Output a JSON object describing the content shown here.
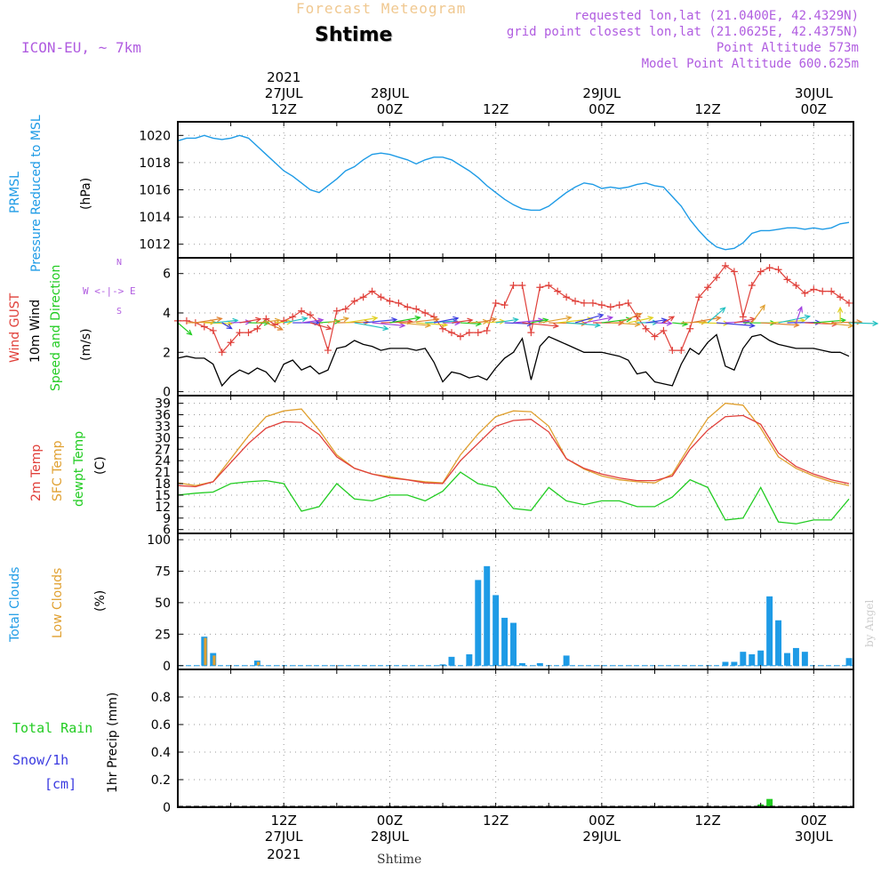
{
  "header": {
    "title_top": "Forecast Meteogram",
    "station": "Shtime",
    "model": "ICON-EU, ~ 7km",
    "requested": "requested lon,lat (21.0400E, 42.4329N)",
    "gridpoint": "grid point closest lon,lat (21.0625E, 42.4375N)",
    "point_altitude": "Point Altitude 573m",
    "model_altitude": "Model Point Altitude 600.625m",
    "footer_station": "Shtime",
    "credit": "by Angel"
  },
  "colors": {
    "pressure": "#1e9be6",
    "gust": "#e0403a",
    "wind": "#000000",
    "t2m": "#e0403a",
    "sfc": "#e0a030",
    "dew": "#22cc22",
    "cloud_total": "#1e9be6",
    "cloud_low": "#e0a030",
    "rain": "#22cc22",
    "snow": "#3a3ae0",
    "purple": "#b05ce0"
  },
  "time_axis": {
    "top_year": "2021",
    "top": [
      {
        "t": 12,
        "l1": "27JUL",
        "l2": "12Z"
      },
      {
        "t": 24,
        "l1": "28JUL",
        "l2": "00Z"
      },
      {
        "t": 36,
        "l1": "",
        "l2": "12Z"
      },
      {
        "t": 48,
        "l1": "29JUL",
        "l2": "00Z"
      },
      {
        "t": 60,
        "l1": "",
        "l2": "12Z"
      },
      {
        "t": 72,
        "l1": "30JUL",
        "l2": "00Z"
      }
    ],
    "bottom_year": "2021",
    "bottom": [
      {
        "t": 12,
        "l1": "12Z",
        "l2": "27JUL"
      },
      {
        "t": 24,
        "l1": "00Z",
        "l2": "28JUL"
      },
      {
        "t": 36,
        "l1": "12Z",
        "l2": ""
      },
      {
        "t": 48,
        "l1": "00Z",
        "l2": "29JUL"
      },
      {
        "t": 60,
        "l1": "12Z",
        "l2": ""
      },
      {
        "t": 72,
        "l1": "00Z",
        "l2": "30JUL"
      }
    ]
  },
  "panels": {
    "pressure": {
      "label1": "PRMSL",
      "label2": "Pressure Reduced to MSL",
      "unit": "(hPa)"
    },
    "wind": {
      "label_gust": "Wind GUST",
      "label_wind": "10m Wind",
      "label_dir": "Speed and Direction",
      "unit": "(m/s)",
      "compass_n": "N",
      "compass_s": "S",
      "compass_we": "W <-|-> E"
    },
    "temp": {
      "label_t": "2m Temp",
      "label_sfc": "SFC Temp",
      "label_dew": "dewpt Temp",
      "unit": "(C)"
    },
    "cloud": {
      "label_total": "Total Clouds",
      "label_low": "Low Clouds",
      "unit": "(%)"
    },
    "precip": {
      "label_rain": "Total Rain",
      "label_snow": "Snow/1h",
      "label_cm": "[cm]",
      "unit": "1hr Precip (mm)"
    }
  },
  "chart_data": [
    {
      "type": "line",
      "name": "pressure",
      "ylim": [
        1011,
        1021
      ],
      "yticks": [
        1012,
        1014,
        1016,
        1018,
        1020
      ],
      "x": [
        0,
        1,
        2,
        3,
        4,
        5,
        6,
        7,
        8,
        9,
        10,
        11,
        12,
        13,
        14,
        15,
        16,
        17,
        18,
        19,
        20,
        21,
        22,
        23,
        24,
        25,
        26,
        27,
        28,
        29,
        30,
        31,
        32,
        33,
        34,
        35,
        36,
        37,
        38,
        39,
        40,
        41,
        42,
        43,
        44,
        45,
        46,
        47,
        48,
        49,
        50,
        51,
        52,
        53,
        54,
        55,
        56,
        57,
        58,
        59,
        60,
        61,
        62,
        63,
        64,
        65,
        66,
        67,
        68,
        69,
        70,
        71,
        72,
        73,
        74,
        75,
        76
      ],
      "values": [
        1019.6,
        1019.8,
        1019.8,
        1020.0,
        1019.8,
        1019.7,
        1019.8,
        1020.0,
        1019.8,
        1019.2,
        1018.6,
        1018.0,
        1017.4,
        1017.0,
        1016.5,
        1016.0,
        1015.8,
        1016.3,
        1016.8,
        1017.4,
        1017.7,
        1018.2,
        1018.6,
        1018.7,
        1018.6,
        1018.4,
        1018.2,
        1017.9,
        1018.2,
        1018.4,
        1018.4,
        1018.2,
        1017.8,
        1017.4,
        1016.9,
        1016.3,
        1015.8,
        1015.3,
        1014.9,
        1014.6,
        1014.5,
        1014.5,
        1014.8,
        1015.3,
        1015.8,
        1016.2,
        1016.5,
        1016.4,
        1016.1,
        1016.2,
        1016.1,
        1016.2,
        1016.4,
        1016.5,
        1016.3,
        1016.2,
        1015.5,
        1014.8,
        1013.8,
        1013.0,
        1012.3,
        1011.8,
        1011.6,
        1011.7,
        1012.1,
        1012.8,
        1013.0,
        1013.0,
        1013.1,
        1013.2,
        1013.2,
        1013.1,
        1013.2,
        1013.1,
        1013.2,
        1013.5,
        1013.6
      ]
    },
    {
      "type": "line",
      "name": "wind",
      "ylim": [
        -0.2,
        6.8
      ],
      "yticks": [
        0,
        2,
        4,
        6
      ],
      "series": [
        {
          "name": "Wind GUST",
          "x": [
            0,
            1,
            2,
            3,
            4,
            5,
            6,
            7,
            8,
            9,
            10,
            11,
            12,
            13,
            14,
            15,
            16,
            17,
            18,
            19,
            20,
            21,
            22,
            23,
            24,
            25,
            26,
            27,
            28,
            29,
            30,
            31,
            32,
            33,
            34,
            35,
            36,
            37,
            38,
            39,
            40,
            41,
            42,
            43,
            44,
            45,
            46,
            47,
            48,
            49,
            50,
            51,
            52,
            53,
            54,
            55,
            56,
            57,
            58,
            59,
            60,
            61,
            62,
            63,
            64,
            65,
            66,
            67,
            68,
            69,
            70,
            71,
            72,
            73,
            74,
            75,
            76
          ],
          "values": [
            3.6,
            3.6,
            3.5,
            3.3,
            3.1,
            2.0,
            2.5,
            3.0,
            3.0,
            3.2,
            3.7,
            3.4,
            3.6,
            3.8,
            4.1,
            3.9,
            3.5,
            2.1,
            4.1,
            4.2,
            4.6,
            4.8,
            5.1,
            4.8,
            4.6,
            4.5,
            4.3,
            4.2,
            4.0,
            3.8,
            3.2,
            3.0,
            2.8,
            3.0,
            3.0,
            3.1,
            4.5,
            4.4,
            5.4,
            5.4,
            3.0,
            5.3,
            5.4,
            5.1,
            4.8,
            4.6,
            4.5,
            4.5,
            4.4,
            4.3,
            4.4,
            4.5,
            3.8,
            3.2,
            2.8,
            3.1,
            2.1,
            2.1,
            3.2,
            4.8,
            5.3,
            5.8,
            6.4,
            6.1,
            3.8,
            5.4,
            6.1,
            6.3,
            6.2,
            5.7,
            5.4,
            5.0,
            5.2,
            5.1,
            5.1,
            4.8,
            4.5
          ]
        },
        {
          "name": "10m Wind",
          "x": [
            0,
            1,
            2,
            3,
            4,
            5,
            6,
            7,
            8,
            9,
            10,
            11,
            12,
            13,
            14,
            15,
            16,
            17,
            18,
            19,
            20,
            21,
            22,
            23,
            24,
            25,
            26,
            27,
            28,
            29,
            30,
            31,
            32,
            33,
            34,
            35,
            36,
            37,
            38,
            39,
            40,
            41,
            42,
            43,
            44,
            45,
            46,
            47,
            48,
            49,
            50,
            51,
            52,
            53,
            54,
            55,
            56,
            57,
            58,
            59,
            60,
            61,
            62,
            63,
            64,
            65,
            66,
            67,
            68,
            69,
            70,
            71,
            72,
            73,
            74,
            75,
            76
          ],
          "values": [
            1.7,
            1.8,
            1.7,
            1.7,
            1.4,
            0.3,
            0.8,
            1.1,
            0.9,
            1.2,
            1.0,
            0.5,
            1.4,
            1.6,
            1.1,
            1.3,
            0.9,
            1.1,
            2.2,
            2.3,
            2.6,
            2.4,
            2.3,
            2.1,
            2.2,
            2.2,
            2.2,
            2.1,
            2.2,
            1.5,
            0.5,
            1.0,
            0.9,
            0.7,
            0.8,
            0.6,
            1.2,
            1.7,
            2.0,
            2.7,
            0.6,
            2.3,
            2.8,
            2.6,
            2.4,
            2.2,
            2.0,
            2.0,
            2.0,
            1.9,
            1.8,
            1.6,
            0.9,
            1.0,
            0.5,
            0.4,
            0.3,
            1.4,
            2.2,
            1.9,
            2.5,
            2.9,
            1.3,
            1.1,
            2.2,
            2.8,
            2.9,
            2.6,
            2.4,
            2.3,
            2.2,
            2.2,
            2.2,
            2.1,
            2.0,
            2.0,
            1.8
          ]
        }
      ]
    },
    {
      "type": "line",
      "name": "temperature",
      "ylim": [
        5,
        41
      ],
      "yticks": [
        6,
        9,
        12,
        15,
        18,
        21,
        24,
        27,
        30,
        33,
        36,
        39
      ],
      "series": [
        {
          "name": "2m Temp",
          "x": [
            0,
            2,
            4,
            6,
            8,
            10,
            12,
            14,
            16,
            18,
            20,
            22,
            24,
            26,
            28,
            30,
            32,
            34,
            36,
            38,
            40,
            42,
            44,
            46,
            48,
            50,
            52,
            54,
            56,
            58,
            60,
            62,
            64,
            66,
            68,
            70,
            72,
            74,
            76
          ],
          "values": [
            17.5,
            17.2,
            18.5,
            23.5,
            28.5,
            32.5,
            34.2,
            34.0,
            30.8,
            25.0,
            22.0,
            20.5,
            19.5,
            19.0,
            18.2,
            18.0,
            24.0,
            28.5,
            33.0,
            34.5,
            34.8,
            31.5,
            24.5,
            22.0,
            20.5,
            19.5,
            18.8,
            18.8,
            20.0,
            27.0,
            32.0,
            35.5,
            35.8,
            33.5,
            26.0,
            22.5,
            20.5,
            19.0,
            18.0
          ]
        },
        {
          "name": "SFC Temp",
          "x": [
            0,
            2,
            4,
            6,
            8,
            10,
            12,
            14,
            16,
            18,
            20,
            22,
            24,
            26,
            28,
            30,
            32,
            34,
            36,
            38,
            40,
            42,
            44,
            46,
            48,
            50,
            52,
            54,
            56,
            58,
            60,
            62,
            64,
            66,
            68,
            70,
            72,
            74,
            76
          ],
          "values": [
            18.2,
            17.5,
            18.5,
            24.5,
            30.5,
            35.5,
            37.0,
            37.5,
            32.0,
            25.5,
            22.0,
            20.5,
            19.8,
            19.0,
            18.5,
            18.2,
            25.5,
            31.0,
            35.5,
            37.0,
            36.8,
            33.0,
            24.5,
            21.8,
            20.0,
            19.0,
            18.5,
            18.2,
            20.5,
            28.0,
            35.0,
            39.0,
            38.5,
            32.5,
            25.0,
            22.0,
            20.0,
            18.5,
            17.5
          ]
        },
        {
          "name": "dewpt Temp",
          "x": [
            0,
            2,
            4,
            6,
            8,
            10,
            12,
            14,
            16,
            18,
            20,
            22,
            24,
            26,
            28,
            30,
            32,
            34,
            36,
            38,
            40,
            42,
            44,
            46,
            48,
            50,
            52,
            54,
            56,
            58,
            60,
            62,
            64,
            66,
            68,
            70,
            72,
            74,
            76
          ],
          "values": [
            15.0,
            15.5,
            15.8,
            18.0,
            18.5,
            18.8,
            18.0,
            10.8,
            12.0,
            18.0,
            14.0,
            13.5,
            15.0,
            15.0,
            13.5,
            16.0,
            21.0,
            18.0,
            17.0,
            11.5,
            11.0,
            17.0,
            13.5,
            12.5,
            13.5,
            13.5,
            12.0,
            12.0,
            14.5,
            19.0,
            17.0,
            8.5,
            9.0,
            17.0,
            8.0,
            7.5,
            8.5,
            8.5,
            14.0
          ]
        }
      ]
    },
    {
      "type": "bar",
      "name": "clouds",
      "ylim": [
        -3,
        105
      ],
      "yticks": [
        0,
        25,
        50,
        75,
        100
      ],
      "series": [
        {
          "name": "Total Clouds",
          "x": [
            3,
            4,
            9,
            30,
            31,
            33,
            34,
            35,
            36,
            37,
            38,
            39,
            41,
            44,
            62,
            63,
            64,
            65,
            66,
            67,
            68,
            69,
            70,
            71,
            76
          ],
          "values": [
            23,
            10,
            4,
            1,
            7,
            9,
            68,
            79,
            56,
            38,
            34,
            2,
            2,
            8,
            3,
            3,
            11,
            9,
            12,
            55,
            36,
            10,
            14,
            11,
            6
          ]
        },
        {
          "name": "Low Clouds",
          "x": [
            3,
            4,
            9
          ],
          "values": [
            22,
            8,
            3
          ]
        }
      ]
    },
    {
      "type": "bar",
      "name": "precip",
      "ylim": [
        0,
        1.0
      ],
      "yticks": [
        0,
        0.2,
        0.4,
        0.6,
        0.8
      ],
      "series": [
        {
          "name": "Total Rain",
          "x": [
            66,
            67
          ],
          "values": [
            0.02,
            0.06
          ]
        },
        {
          "name": "Snow/1h",
          "x": [],
          "values": []
        }
      ]
    }
  ]
}
